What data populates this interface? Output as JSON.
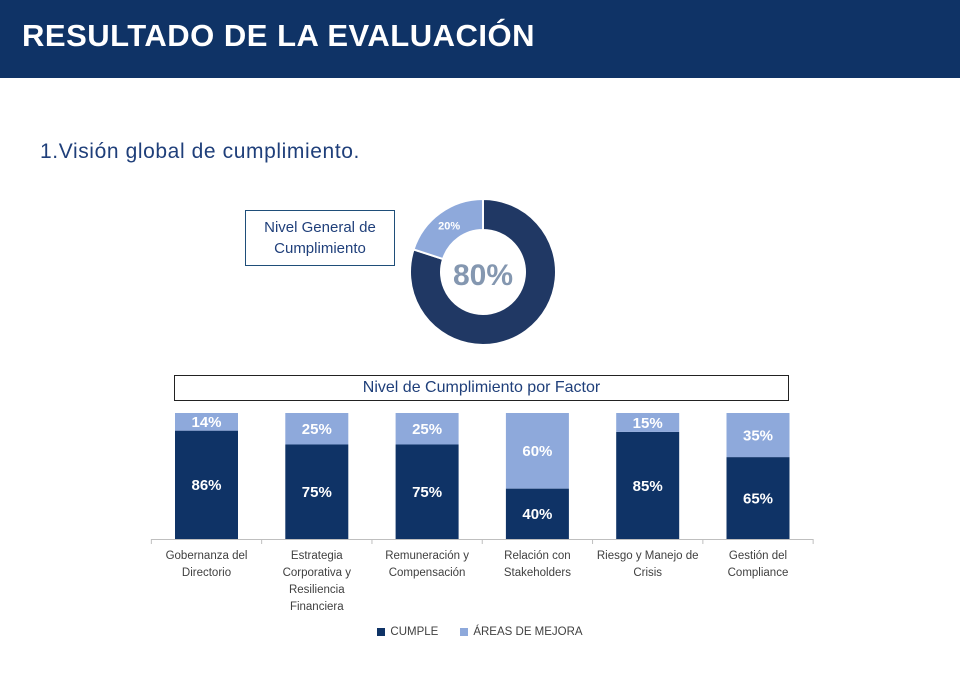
{
  "header": {
    "title": "RESULTADO DE LA EVALUACIÓN"
  },
  "section": {
    "title": "1.Visión global de cumplimiento."
  },
  "colors": {
    "header_bg": "#0f3366",
    "cumple": "#0f3366",
    "mejora": "#8ea9db",
    "donut_cumple": "#203864",
    "center_text": "#8497b0"
  },
  "chart_data": [
    {
      "type": "pie",
      "donut": true,
      "title": "Nivel General de Cumplimiento",
      "center_label": "80%",
      "slices": [
        {
          "label": "Cumple",
          "value": 80,
          "data_label": ""
        },
        {
          "label": "Áreas de mejora",
          "value": 20,
          "data_label": "20%"
        }
      ]
    },
    {
      "type": "bar",
      "stacked": true,
      "title": "Nivel de Cumplimiento por Factor",
      "categories": [
        [
          "Gobernanza del",
          "Directorio"
        ],
        [
          "Estrategia",
          "Corporativa y",
          "Resiliencia",
          "Financiera"
        ],
        [
          "Remuneración y",
          "Compensación"
        ],
        [
          "Relación con",
          "Stakeholders"
        ],
        [
          "Riesgo y Manejo de",
          "Crisis"
        ],
        [
          "Gestión del",
          "Compliance"
        ]
      ],
      "ylim": [
        0,
        100
      ],
      "series": [
        {
          "name": "CUMPLE",
          "values": [
            86,
            75,
            75,
            40,
            85,
            65
          ],
          "labels": [
            "86%",
            "75%",
            "75%",
            "40%",
            "85%",
            "65%"
          ]
        },
        {
          "name": "ÁREAS DE MEJORA",
          "values": [
            14,
            25,
            25,
            60,
            15,
            35
          ],
          "labels": [
            "14%",
            "25%",
            "25%",
            "60%",
            "15%",
            "35%"
          ]
        }
      ],
      "legend": "bottom"
    }
  ]
}
